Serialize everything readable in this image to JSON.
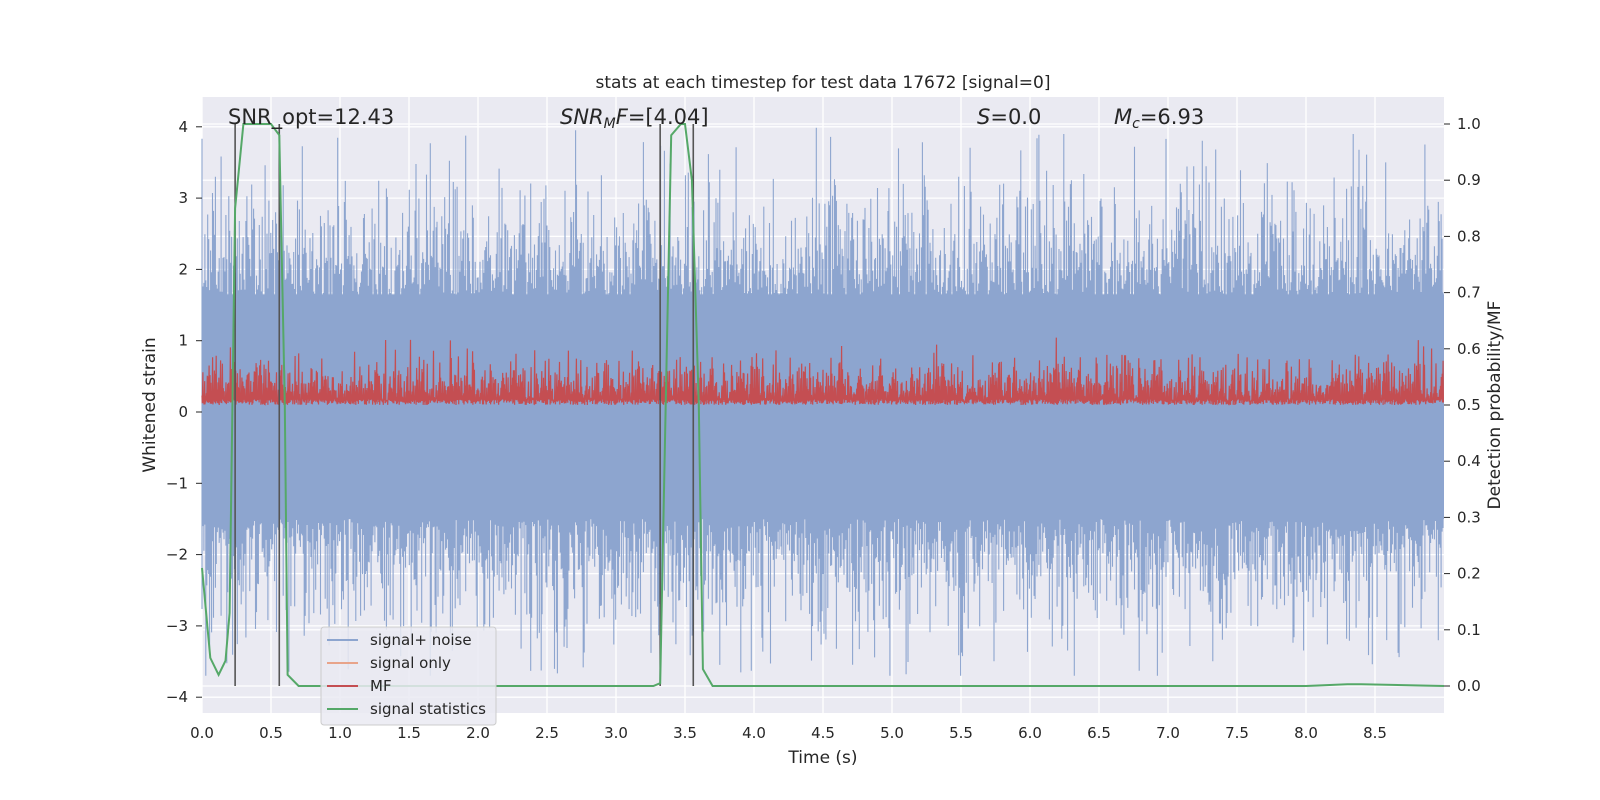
{
  "chart_data": {
    "type": "line",
    "title": "stats at each timestep for test data 17672 [signal=0]",
    "xlabel": "Time (s)",
    "ylabel": "Whitened strain",
    "ylabel_right": "Detection probability/MF",
    "xlim": [
      0.0,
      9.0
    ],
    "ylim": [
      -4.2,
      4.38
    ],
    "ylim_right": [
      -0.05,
      1.03
    ],
    "xticks": [
      "0.0",
      "0.5",
      "1.0",
      "1.5",
      "2.0",
      "2.5",
      "3.0",
      "3.5",
      "4.0",
      "4.5",
      "5.0",
      "5.5",
      "6.0",
      "6.5",
      "7.0",
      "7.5",
      "8.0",
      "8.5"
    ],
    "yticks": [
      "−4",
      "−3",
      "−2",
      "−1",
      "0",
      "1",
      "2",
      "3",
      "4"
    ],
    "yticks_right": [
      "0.0",
      "0.1",
      "0.2",
      "0.3",
      "0.4",
      "0.5",
      "0.6",
      "0.7",
      "0.8",
      "0.9",
      "1.0"
    ],
    "grid": true,
    "legend_position": "lower-left",
    "annotations": {
      "snr_opt": "SNR_opt=12.43",
      "snr_mf_base": "SNR",
      "snr_mf_sub": "M",
      "snr_mf_var": "F",
      "snr_mf_rest": "=[4.04]",
      "s_var": "S",
      "s_rest": "=0.0",
      "mc_base": "M",
      "mc_sub": "c",
      "mc_rest": "=6.93"
    },
    "series": [
      {
        "name": "signal+ noise",
        "color": "#8da5cf",
        "axis": "left",
        "description_note_free": true,
        "stats": {
          "mean": 0.0,
          "envelope_lower": -1.5,
          "envelope_upper": 1.65,
          "spikes_min": -3.7,
          "spikes_max": 4.0
        }
      },
      {
        "name": "signal only",
        "color": "#e8a48a",
        "axis": "left",
        "values": []
      },
      {
        "name": "MF",
        "color": "#c44e52",
        "axis": "right",
        "stats": {
          "min": 0.5,
          "max": 0.62
        }
      },
      {
        "name": "signal statistics",
        "color": "#55a868",
        "axis": "right",
        "x": [
          0.0,
          0.06,
          0.12,
          0.17,
          0.2,
          0.24,
          0.3,
          0.4,
          0.5,
          0.56,
          0.6,
          0.62,
          0.7,
          1.0,
          2.0,
          3.0,
          3.27,
          3.32,
          3.36,
          3.4,
          3.47,
          3.5,
          3.55,
          3.6,
          3.63,
          3.7,
          4.0,
          5.0,
          6.0,
          7.0,
          8.0,
          8.3,
          8.4,
          9.0
        ],
        "y": [
          0.21,
          0.05,
          0.02,
          0.045,
          0.13,
          0.85,
          1.0,
          1.0,
          1.0,
          0.98,
          0.5,
          0.02,
          0.0,
          0.0,
          0.0,
          0.0,
          0.0,
          0.005,
          0.5,
          0.98,
          1.0,
          1.0,
          0.9,
          0.5,
          0.03,
          0.0,
          0.0,
          0.0,
          0.0,
          0.0,
          0.0,
          0.003,
          0.003,
          0.0
        ]
      }
    ],
    "vlines": [
      0.24,
      0.56,
      3.32,
      3.56
    ],
    "colors": {
      "plot_bg": "#eaeaf2",
      "grid": "#ffffff",
      "vline": "#555555"
    }
  }
}
